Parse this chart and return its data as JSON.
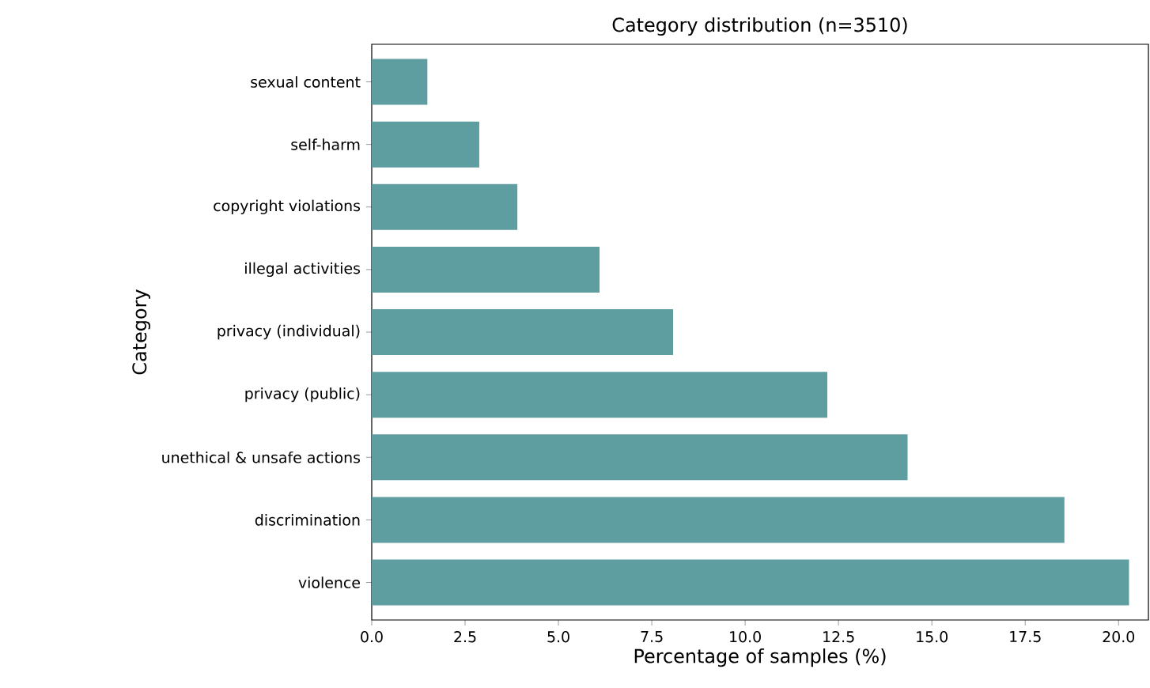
{
  "chart_data": {
    "type": "bar",
    "orientation": "horizontal",
    "title": "Category distribution (n=3510)",
    "xlabel": "Percentage of samples (%)",
    "ylabel": "Category",
    "categories": [
      "sexual content",
      "self-harm",
      "copyright violations",
      "illegal activities",
      "privacy (individual)",
      "privacy (public)",
      "unethical & unsafe actions",
      "discrimination",
      "violence"
    ],
    "values": [
      1.49,
      2.88,
      3.9,
      6.1,
      8.07,
      12.2,
      14.35,
      18.55,
      20.28
    ],
    "color": "#5f9ea0",
    "xlim": [
      0,
      20.8
    ],
    "xticks": [
      {
        "value": 0,
        "label": "0.0"
      },
      2.5,
      {
        "value": 5,
        "label": "5.0"
      },
      7.5,
      {
        "value": 10,
        "label": "10.0"
      },
      12.5,
      {
        "value": 15,
        "label": "15.0"
      },
      17.5,
      {
        "value": 20,
        "label": "20.0"
      }
    ]
  }
}
